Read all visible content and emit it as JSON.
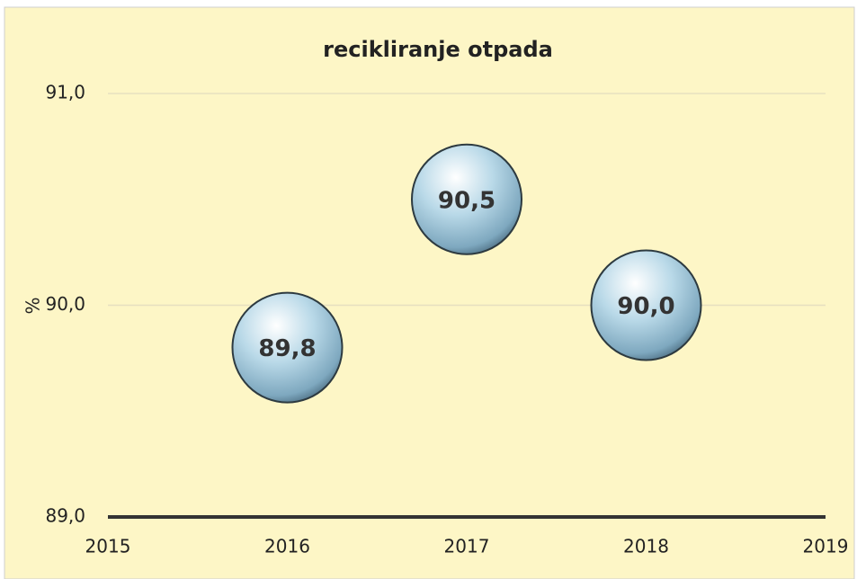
{
  "chart_data": {
    "type": "bubble",
    "title": "recikliranje otpada",
    "y_label": "%",
    "x": [
      2016,
      2017,
      2018
    ],
    "values": [
      89.8,
      90.5,
      90.0
    ],
    "value_labels": [
      "89,8",
      "90,5",
      "90,0"
    ],
    "xlim": [
      2015,
      2019
    ],
    "xticks": [
      2015,
      2016,
      2017,
      2018,
      2019
    ],
    "ylim": [
      89,
      91
    ],
    "yticks": [
      {
        "value": 89,
        "label": "89,0"
      },
      {
        "value": 90,
        "label": "90,0"
      },
      {
        "value": 91,
        "label": "91,0"
      }
    ],
    "grid": true,
    "color": "#a9cde0"
  }
}
